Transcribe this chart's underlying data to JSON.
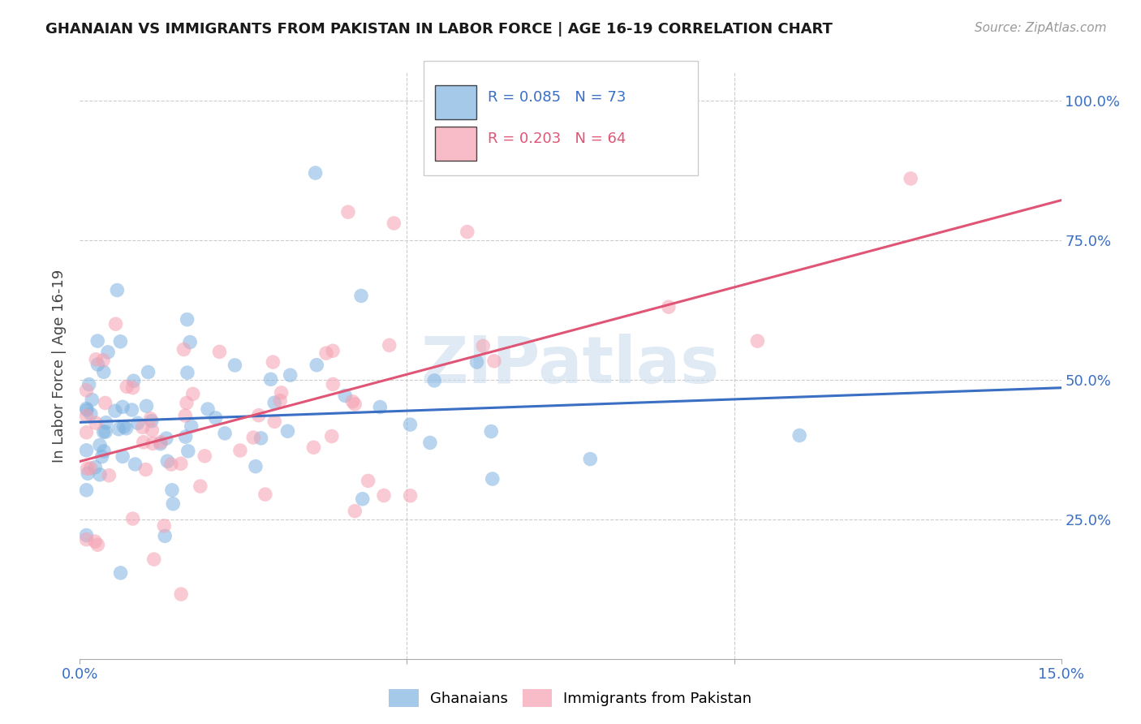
{
  "title": "GHANAIAN VS IMMIGRANTS FROM PAKISTAN IN LABOR FORCE | AGE 16-19 CORRELATION CHART",
  "source": "Source: ZipAtlas.com",
  "ylabel": "In Labor Force | Age 16-19",
  "watermark_text": "ZIPatlas",
  "xmin": 0.0,
  "xmax": 0.15,
  "ymin": 0.0,
  "ymax": 1.05,
  "series1_name": "Ghanaians",
  "series2_name": "Immigrants from Pakistan",
  "series1_color": "#7EB2E0",
  "series2_color": "#F5A0B0",
  "series1_line_color": "#3A6FC4",
  "series2_line_color": "#E05575",
  "series1_R": 0.085,
  "series1_N": 73,
  "series2_R": 0.203,
  "series2_N": 64,
  "legend_R1_color": "#3A6FC4",
  "legend_R2_color": "#E05575",
  "legend_N_color": "#3A6FC4",
  "tick_color": "#3A6FC4",
  "ytick_positions": [
    0.0,
    0.25,
    0.5,
    0.75,
    1.0
  ],
  "ytick_labels": [
    "",
    "25.0%",
    "50.0%",
    "75.0%",
    "100.0%"
  ],
  "xtick_positions": [
    0.0,
    0.05,
    0.1,
    0.15
  ],
  "xtick_labels": [
    "0.0%",
    "",
    "",
    "15.0%"
  ],
  "grid_color": "#CCCCCC",
  "spine_color": "#AAAAAA",
  "title_fontsize": 13,
  "axis_fontsize": 13,
  "source_fontsize": 11,
  "scatter_alpha": 0.55,
  "scatter_size": 160
}
